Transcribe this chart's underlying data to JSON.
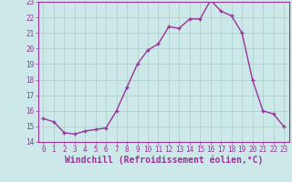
{
  "x": [
    0,
    1,
    2,
    3,
    4,
    5,
    6,
    7,
    8,
    9,
    10,
    11,
    12,
    13,
    14,
    15,
    16,
    17,
    18,
    19,
    20,
    21,
    22,
    23
  ],
  "y": [
    15.5,
    15.3,
    14.6,
    14.5,
    14.7,
    14.8,
    14.9,
    16.0,
    17.5,
    19.0,
    19.9,
    20.3,
    21.4,
    21.3,
    21.9,
    21.9,
    23.1,
    22.4,
    22.1,
    21.0,
    18.0,
    16.0,
    15.8,
    15.0
  ],
  "line_color": "#993399",
  "marker_color": "#993399",
  "bg_color": "#cce8e8",
  "grid_color": "#aacccc",
  "xlabel": "Windchill (Refroidissement éolien,°C)",
  "xlabel_color": "#993399",
  "tick_color": "#993399",
  "ylim": [
    14,
    23
  ],
  "xlim": [
    -0.5,
    23.5
  ],
  "yticks": [
    14,
    15,
    16,
    17,
    18,
    19,
    20,
    21,
    22,
    23
  ],
  "xticks": [
    0,
    1,
    2,
    3,
    4,
    5,
    6,
    7,
    8,
    9,
    10,
    11,
    12,
    13,
    14,
    15,
    16,
    17,
    18,
    19,
    20,
    21,
    22,
    23
  ],
  "marker_size": 3.5,
  "line_width": 1.0,
  "axis_color": "#993399",
  "tick_fontsize": 5.5,
  "xlabel_fontsize": 7.0
}
